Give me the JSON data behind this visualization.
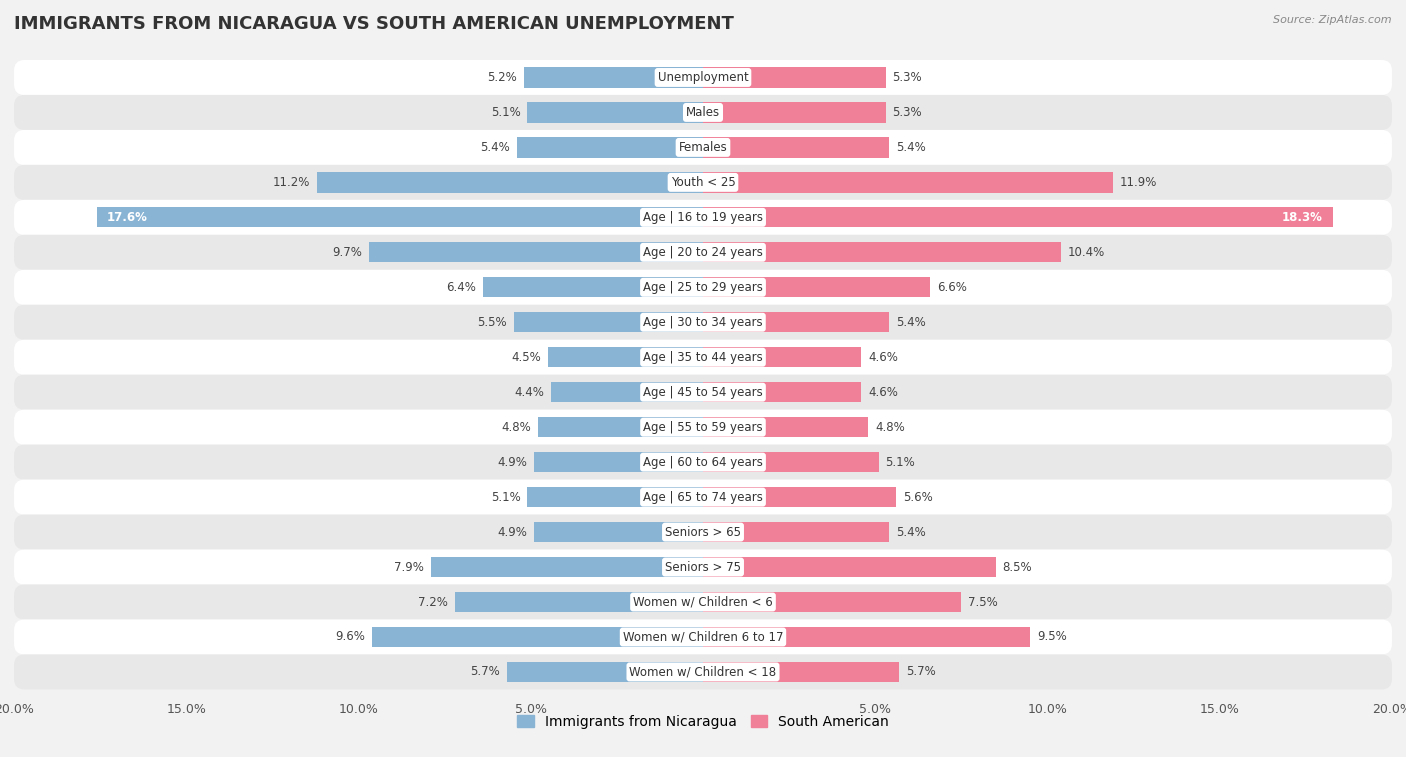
{
  "title": "IMMIGRANTS FROM NICARAGUA VS SOUTH AMERICAN UNEMPLOYMENT",
  "source": "Source: ZipAtlas.com",
  "categories": [
    "Unemployment",
    "Males",
    "Females",
    "Youth < 25",
    "Age | 16 to 19 years",
    "Age | 20 to 24 years",
    "Age | 25 to 29 years",
    "Age | 30 to 34 years",
    "Age | 35 to 44 years",
    "Age | 45 to 54 years",
    "Age | 55 to 59 years",
    "Age | 60 to 64 years",
    "Age | 65 to 74 years",
    "Seniors > 65",
    "Seniors > 75",
    "Women w/ Children < 6",
    "Women w/ Children 6 to 17",
    "Women w/ Children < 18"
  ],
  "nicaragua_values": [
    5.2,
    5.1,
    5.4,
    11.2,
    17.6,
    9.7,
    6.4,
    5.5,
    4.5,
    4.4,
    4.8,
    4.9,
    5.1,
    4.9,
    7.9,
    7.2,
    9.6,
    5.7
  ],
  "south_american_values": [
    5.3,
    5.3,
    5.4,
    11.9,
    18.3,
    10.4,
    6.6,
    5.4,
    4.6,
    4.6,
    4.8,
    5.1,
    5.6,
    5.4,
    8.5,
    7.5,
    9.5,
    5.7
  ],
  "nicaragua_color": "#8ab4d4",
  "south_american_color": "#f08098",
  "background_color": "#f2f2f2",
  "row_odd_color": "#ffffff",
  "row_even_color": "#e8e8e8",
  "xlim": 20.0,
  "bar_height": 0.58,
  "title_fontsize": 13,
  "label_fontsize": 8.5,
  "tick_fontsize": 9,
  "legend_fontsize": 10,
  "value_fontsize": 8.5
}
